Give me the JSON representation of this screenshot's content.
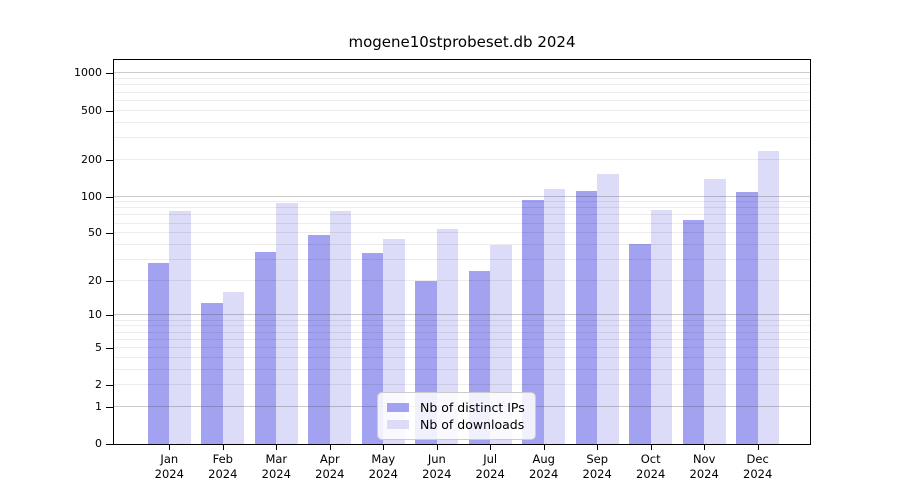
{
  "title": "mogene10stprobeset.db 2024",
  "chart_data": {
    "type": "bar",
    "title": "mogene10stprobeset.db 2024",
    "categories": [
      "Jan 2024",
      "Feb 2024",
      "Mar 2024",
      "Apr 2024",
      "May 2024",
      "Jun 2024",
      "Jul 2024",
      "Aug 2024",
      "Sep 2024",
      "Oct 2024",
      "Nov 2024",
      "Dec 2024"
    ],
    "category_line1": [
      "Jan",
      "Feb",
      "Mar",
      "Apr",
      "May",
      "Jun",
      "Jul",
      "Aug",
      "Sep",
      "Oct",
      "Nov",
      "Dec"
    ],
    "category_line2": [
      "2024",
      "2024",
      "2024",
      "2024",
      "2024",
      "2024",
      "2024",
      "2024",
      "2024",
      "2024",
      "2024",
      "2024"
    ],
    "series": [
      {
        "name": "Nb of distinct IPs",
        "color": "#a2a2f0",
        "values": [
          28,
          13,
          35,
          48,
          34,
          20,
          24,
          93,
          110,
          41,
          64,
          109
        ]
      },
      {
        "name": "Nb of downloads",
        "color": "#dcdcf8",
        "values": [
          76,
          16,
          88,
          76,
          45,
          54,
          40,
          116,
          152,
          77,
          140,
          234
        ]
      }
    ],
    "yscale": "log1p",
    "yticks": [
      0,
      1,
      2,
      5,
      10,
      20,
      50,
      100,
      200,
      500,
      1000
    ],
    "minor_gridlines": [
      2,
      3,
      4,
      5,
      6,
      7,
      8,
      9,
      20,
      30,
      40,
      50,
      60,
      70,
      80,
      90,
      200,
      300,
      400,
      500,
      600,
      700,
      800,
      900
    ],
    "major_gridlines": [
      1,
      10,
      100,
      1000
    ],
    "ylim": [
      0,
      1330
    ],
    "xlabel": "",
    "ylabel": "",
    "grid": "on",
    "legend_position": "lower-center"
  },
  "legend": {
    "items": [
      {
        "label": "Nb of distinct IPs",
        "color": "#a2a2f0"
      },
      {
        "label": "Nb of downloads",
        "color": "#dcdcf8"
      }
    ]
  }
}
